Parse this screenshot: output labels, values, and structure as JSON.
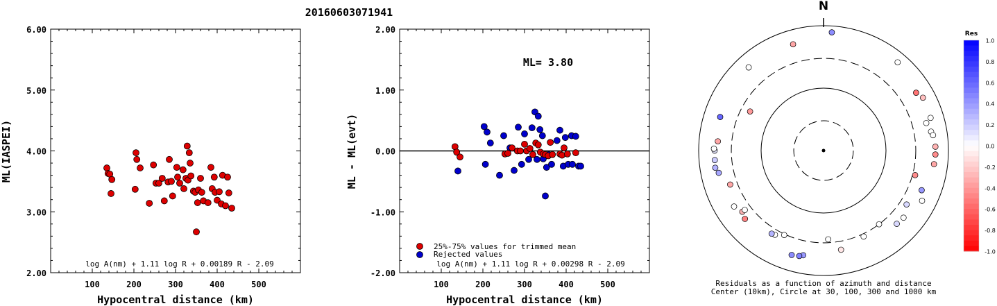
{
  "title": "20160603071941",
  "panel1": {
    "ylabel": "ML(IASPEI)",
    "xlabel": "Hypocentral distance (km)",
    "formula": "log A(nm) + 1.11 log R + 0.00189 R - 2.09"
  },
  "panel2": {
    "ylabel": "ML - ML(evt)",
    "xlabel": "Hypocentral distance (km)",
    "ml_label": "ML= 3.80",
    "legend_trimmed": "25%-75% values for trimmed mean",
    "legend_rejected": "Rejected values",
    "formula": "log A(nm) + 1.11 log R + 0.00298 R - 2.09"
  },
  "panel3": {
    "north_label": "N",
    "caption_line1": "Residuals as a function of azimuth and distance",
    "caption_line2": "Center (10km), Circle at 30, 100, 300 and 1000 km",
    "colorbar_title": "Res",
    "colorbar_ticks": [
      "1.0",
      "0.8",
      "0.6",
      "0.4",
      "0.2",
      "0.0",
      "-0.2",
      "-0.4",
      "-0.6",
      "-0.8",
      "-1.0"
    ]
  },
  "colors": {
    "trimmed": "#dd0000",
    "rejected": "#0000cc",
    "positive": "#0000ff",
    "negative": "#ff0000"
  },
  "chart_data": [
    {
      "type": "scatter",
      "xlabel": "Hypocentral distance (km)",
      "ylabel": "ML(IASPEI)",
      "xlim": [
        0,
        600
      ],
      "ylim": [
        2.0,
        6.0
      ],
      "x_ticks": [
        100,
        200,
        300,
        400,
        500
      ],
      "y_ticks": [
        "2.00",
        "3.00",
        "4.00",
        "5.00",
        "6.00"
      ],
      "series": [
        {
          "points": [
            [
              135,
              3.72
            ],
            [
              138,
              3.63
            ],
            [
              142,
              3.62
            ],
            [
              147,
              3.53
            ],
            [
              145,
              3.3
            ],
            [
              203,
              3.37
            ],
            [
              205,
              3.97
            ],
            [
              207,
              3.86
            ],
            [
              215,
              3.72
            ],
            [
              237,
              3.14
            ],
            [
              247,
              3.77
            ],
            [
              253,
              3.47
            ],
            [
              260,
              3.47
            ],
            [
              268,
              3.55
            ],
            [
              273,
              3.18
            ],
            [
              282,
              3.49
            ],
            [
              285,
              3.86
            ],
            [
              290,
              3.5
            ],
            [
              293,
              3.26
            ],
            [
              303,
              3.73
            ],
            [
              305,
              3.57
            ],
            [
              310,
              3.47
            ],
            [
              318,
              3.69
            ],
            [
              320,
              3.38
            ],
            [
              325,
              3.55
            ],
            [
              328,
              4.08
            ],
            [
              330,
              3.52
            ],
            [
              333,
              3.97
            ],
            [
              335,
              3.8
            ],
            [
              337,
              3.59
            ],
            [
              343,
              3.34
            ],
            [
              347,
              3.32
            ],
            [
              350,
              2.67
            ],
            [
              353,
              3.15
            ],
            [
              355,
              3.36
            ],
            [
              360,
              3.55
            ],
            [
              363,
              3.32
            ],
            [
              367,
              3.18
            ],
            [
              378,
              3.15
            ],
            [
              385,
              3.73
            ],
            [
              388,
              3.38
            ],
            [
              393,
              3.57
            ],
            [
              395,
              3.32
            ],
            [
              400,
              3.19
            ],
            [
              405,
              3.33
            ],
            [
              410,
              3.13
            ],
            [
              413,
              3.6
            ],
            [
              420,
              3.1
            ],
            [
              425,
              3.57
            ],
            [
              428,
              3.31
            ],
            [
              435,
              3.06
            ]
          ]
        }
      ]
    },
    {
      "type": "scatter",
      "xlabel": "Hypocentral distance (km)",
      "ylabel": "ML - ML(evt)",
      "xlim": [
        0,
        600
      ],
      "ylim": [
        -2.0,
        2.0
      ],
      "x_ticks": [
        100,
        200,
        300,
        400,
        500
      ],
      "y_ticks": [
        "-2.00",
        "-1.00",
        "0.00",
        "1.00",
        "2.00"
      ],
      "series": [
        {
          "name": "25%-75% values for trimmed mean",
          "points": [
            [
              133,
              0.07
            ],
            [
              137,
              -0.02
            ],
            [
              145,
              -0.1
            ],
            [
              253,
              -0.05
            ],
            [
              260,
              -0.04
            ],
            [
              270,
              0.05
            ],
            [
              283,
              0.0
            ],
            [
              290,
              0.0
            ],
            [
              300,
              0.11
            ],
            [
              305,
              0.0
            ],
            [
              313,
              0.04
            ],
            [
              320,
              -0.06
            ],
            [
              327,
              0.13
            ],
            [
              333,
              0.1
            ],
            [
              338,
              -0.02
            ],
            [
              345,
              -0.05
            ],
            [
              350,
              -0.06
            ],
            [
              357,
              -0.08
            ],
            [
              362,
              0.14
            ],
            [
              367,
              -0.06
            ],
            [
              385,
              -0.05
            ],
            [
              390,
              -0.07
            ],
            [
              395,
              0.05
            ],
            [
              403,
              -0.05
            ],
            [
              423,
              -0.03
            ]
          ]
        },
        {
          "name": "Rejected values",
          "points": [
            [
              140,
              -0.33
            ],
            [
              203,
              0.4
            ],
            [
              206,
              -0.22
            ],
            [
              210,
              0.31
            ],
            [
              218,
              0.13
            ],
            [
              240,
              -0.4
            ],
            [
              250,
              0.25
            ],
            [
              265,
              0.05
            ],
            [
              275,
              -0.32
            ],
            [
              285,
              0.39
            ],
            [
              293,
              -0.22
            ],
            [
              300,
              0.28
            ],
            [
              310,
              -0.14
            ],
            [
              318,
              0.38
            ],
            [
              325,
              0.64
            ],
            [
              330,
              -0.14
            ],
            [
              333,
              0.57
            ],
            [
              337,
              0.35
            ],
            [
              343,
              0.25
            ],
            [
              345,
              -0.13
            ],
            [
              350,
              -0.74
            ],
            [
              353,
              -0.27
            ],
            [
              358,
              -0.06
            ],
            [
              365,
              -0.22
            ],
            [
              378,
              0.17
            ],
            [
              385,
              0.34
            ],
            [
              393,
              -0.25
            ],
            [
              398,
              0.22
            ],
            [
              405,
              -0.22
            ],
            [
              413,
              0.25
            ],
            [
              415,
              -0.22
            ],
            [
              423,
              0.24
            ],
            [
              430,
              -0.25
            ],
            [
              435,
              -0.25
            ]
          ]
        }
      ]
    },
    {
      "type": "scatter",
      "projection": "polar",
      "theta_unit": "deg (azimuth, clockwise from north)",
      "r_unit": "km (log scale)",
      "rings_km": [
        10,
        30,
        100,
        300,
        1000
      ],
      "color_range": [
        -1.0,
        1.0
      ],
      "points": [
        {
          "az": 4,
          "dist": 790,
          "res": 0.45
        },
        {
          "az": 40,
          "dist": 700,
          "res": 0.0
        },
        {
          "az": 58,
          "dist": 560,
          "res": -0.55
        },
        {
          "az": 62,
          "dist": 635,
          "res": -0.25
        },
        {
          "az": 73,
          "dist": 620,
          "res": 0.0
        },
        {
          "az": 80,
          "dist": 560,
          "res": 0.0
        },
        {
          "az": 75,
          "dist": 505,
          "res": 0.0
        },
        {
          "az": 82,
          "dist": 590,
          "res": 0.0
        },
        {
          "az": 88,
          "dist": 620,
          "res": -0.3
        },
        {
          "az": 92,
          "dist": 620,
          "res": -0.45
        },
        {
          "az": 97,
          "dist": 605,
          "res": -0.35
        },
        {
          "az": 105,
          "dist": 330,
          "res": -0.45
        },
        {
          "az": 112,
          "dist": 495,
          "res": 0.4
        },
        {
          "az": 117,
          "dist": 590,
          "res": 0.0
        },
        {
          "az": 123,
          "dist": 385,
          "res": 0.15
        },
        {
          "az": 130,
          "dist": 470,
          "res": 0.0
        },
        {
          "az": 135,
          "dist": 455,
          "res": 0.15
        },
        {
          "az": 143,
          "dist": 300,
          "res": 0.0
        },
        {
          "az": 155,
          "dist": 330,
          "res": 0.0
        },
        {
          "az": 170,
          "dist": 410,
          "res": -0.1
        },
        {
          "az": 177,
          "dist": 265,
          "res": 0.0
        },
        {
          "az": 191,
          "dist": 510,
          "res": 0.4
        },
        {
          "az": 193,
          "dist": 540,
          "res": 0.5
        },
        {
          "az": 197,
          "dist": 560,
          "res": 0.45
        },
        {
          "az": 205,
          "dist": 310,
          "res": 0.0
        },
        {
          "az": 210,
          "dist": 360,
          "res": 0.0
        },
        {
          "az": 212,
          "dist": 370,
          "res": 0.3
        },
        {
          "az": 229,
          "dist": 465,
          "res": -0.5
        },
        {
          "az": 233,
          "dist": 425,
          "res": -0.3
        },
        {
          "az": 233,
          "dist": 380,
          "res": 0.0
        },
        {
          "az": 238,
          "dist": 490,
          "res": 0.0
        },
        {
          "az": 250,
          "dist": 390,
          "res": -0.35
        },
        {
          "az": 258,
          "dist": 520,
          "res": 0.35
        },
        {
          "az": 261,
          "dist": 570,
          "res": 0.3
        },
        {
          "az": 265,
          "dist": 560,
          "res": 0.2
        },
        {
          "az": 270,
          "dist": 555,
          "res": 0.1
        },
        {
          "az": 271,
          "dist": 570,
          "res": 0.0
        },
        {
          "az": 275,
          "dist": 500,
          "res": -0.35
        },
        {
          "az": 288,
          "dist": 550,
          "res": 0.6
        },
        {
          "az": 298,
          "dist": 215,
          "res": -0.4
        },
        {
          "az": 318,
          "dist": 620,
          "res": 0.0
        },
        {
          "az": 344,
          "dist": 590,
          "res": -0.35
        }
      ]
    }
  ]
}
